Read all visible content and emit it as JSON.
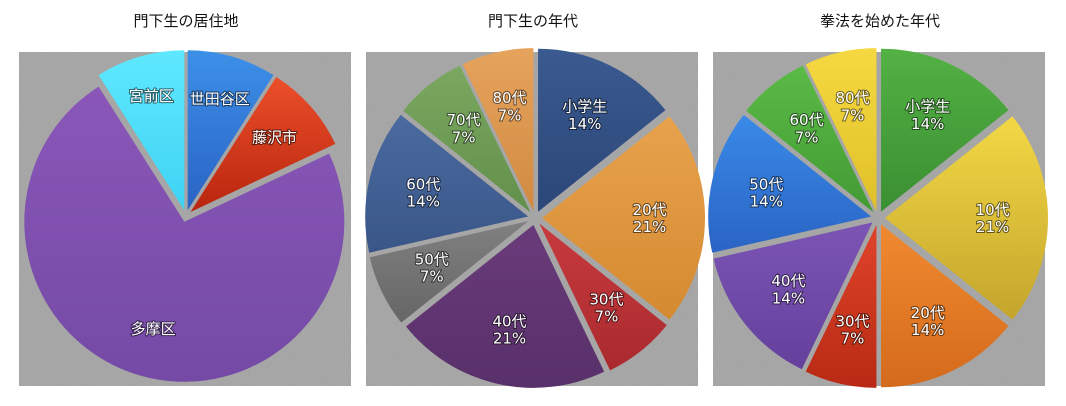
{
  "chart_data": [
    {
      "type": "pie",
      "title": "門下生の居住地",
      "slices": [
        {
          "label": "世田谷区",
          "value": 9,
          "color_top": "#3c90e8",
          "color_bottom": "#2a63c4"
        },
        {
          "label": "藤沢市",
          "value": 9,
          "color_top": "#ec4f2a",
          "color_bottom": "#b8250e"
        },
        {
          "label": "多摩区",
          "value": 73,
          "color_top": "#8a57b8",
          "color_bottom": "#744aa6"
        },
        {
          "label": "宮前区",
          "value": 9,
          "color_top": "#5ee8ff",
          "color_bottom": "#3fd3f3"
        }
      ]
    },
    {
      "type": "pie",
      "title": "門下生の年代",
      "slices": [
        {
          "label": "小学生",
          "pct": "14%",
          "value": 14,
          "color_top": "#3a5a90",
          "color_bottom": "#2c4678"
        },
        {
          "label": "20代",
          "pct": "21%",
          "value": 21,
          "color_top": "#e8a24d",
          "color_bottom": "#d48a30"
        },
        {
          "label": "30代",
          "pct": "7%",
          "value": 7,
          "color_top": "#c83a3e",
          "color_bottom": "#a92a2e"
        },
        {
          "label": "40代",
          "pct": "21%",
          "value": 21,
          "color_top": "#6a3b7a",
          "color_bottom": "#58306a"
        },
        {
          "label": "50代",
          "pct": "7%",
          "value": 7,
          "color_top": "#808080",
          "color_bottom": "#666666"
        },
        {
          "label": "60代",
          "pct": "14%",
          "value": 14,
          "color_top": "#4a6aa0",
          "color_bottom": "#3a5688"
        },
        {
          "label": "70代",
          "pct": "7%",
          "value": 7,
          "color_top": "#7aa860",
          "color_bottom": "#62904c"
        },
        {
          "label": "80代",
          "pct": "7%",
          "value": 7,
          "color_top": "#e6a35c",
          "color_bottom": "#d18a42"
        }
      ]
    },
    {
      "type": "pie",
      "title": "拳法を始めた年代",
      "slices": [
        {
          "label": "小学生",
          "pct": "14%",
          "value": 14,
          "color_top": "#53b144",
          "color_bottom": "#3a8f32"
        },
        {
          "label": "10代",
          "pct": "21%",
          "value": 21,
          "color_top": "#f3d845",
          "color_bottom": "#c4a52c"
        },
        {
          "label": "20代",
          "pct": "14%",
          "value": 14,
          "color_top": "#f08a30",
          "color_bottom": "#d46a1c"
        },
        {
          "label": "30代",
          "pct": "7%",
          "value": 7,
          "color_top": "#e0442a",
          "color_bottom": "#b82a14"
        },
        {
          "label": "40代",
          "pct": "14%",
          "value": 14,
          "color_top": "#7c55b4",
          "color_bottom": "#64409c"
        },
        {
          "label": "50代",
          "pct": "14%",
          "value": 14,
          "color_top": "#3a8ae8",
          "color_bottom": "#2a64c4"
        },
        {
          "label": "60代",
          "pct": "7%",
          "value": 7,
          "color_top": "#5bbb46",
          "color_bottom": "#429a34"
        },
        {
          "label": "80代",
          "pct": "7%",
          "value": 7,
          "color_top": "#f6d840",
          "color_bottom": "#dfc02a"
        }
      ]
    }
  ]
}
